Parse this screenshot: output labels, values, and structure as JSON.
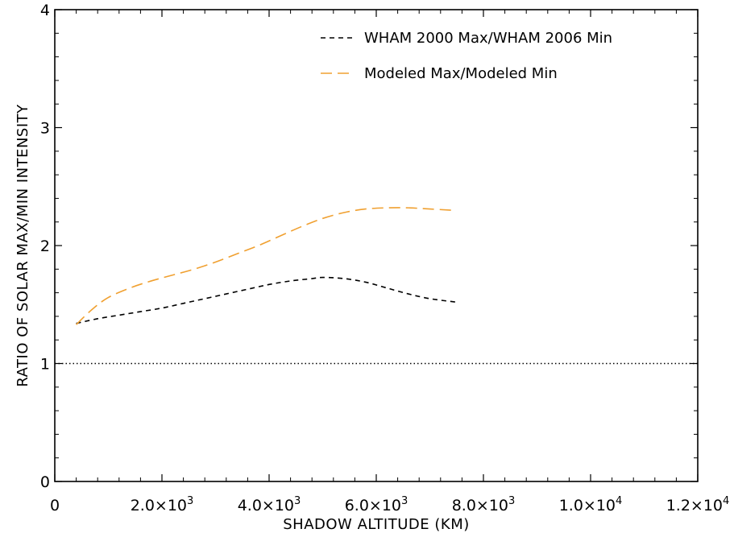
{
  "chart_data": {
    "type": "line",
    "title": "",
    "xlabel": "SHADOW ALTITUDE (KM)",
    "ylabel": "RATIO OF SOLAR MAX/MIN INTENSITY",
    "xlim": [
      0,
      12000
    ],
    "ylim": [
      0,
      4
    ],
    "x_ticks": [
      {
        "value": 0,
        "label": "0"
      },
      {
        "value": 2000,
        "label": "2.0×10",
        "exp": "3"
      },
      {
        "value": 4000,
        "label": "4.0×10",
        "exp": "3"
      },
      {
        "value": 6000,
        "label": "6.0×10",
        "exp": "3"
      },
      {
        "value": 8000,
        "label": "8.0×10",
        "exp": "3"
      },
      {
        "value": 10000,
        "label": "1.0×10",
        "exp": "4"
      },
      {
        "value": 12000,
        "label": "1.2×10",
        "exp": "4"
      }
    ],
    "y_ticks": [
      {
        "value": 0,
        "label": "0"
      },
      {
        "value": 1,
        "label": "1"
      },
      {
        "value": 2,
        "label": "2"
      },
      {
        "value": 3,
        "label": "3"
      },
      {
        "value": 4,
        "label": "4"
      }
    ],
    "grid": false,
    "legend_position": "top-right",
    "reference_line": {
      "y": 1,
      "style": "dotted",
      "color": "#000000"
    },
    "series": [
      {
        "name": "WHAM 2000 Max/WHAM 2006 Min",
        "color": "#000000",
        "style": "short-dash",
        "x": [
          400,
          800,
          1200,
          1600,
          2000,
          2400,
          2800,
          3200,
          3600,
          4000,
          4400,
          4800,
          5000,
          5400,
          5800,
          6200,
          6600,
          7000,
          7500
        ],
        "y": [
          1.34,
          1.38,
          1.41,
          1.44,
          1.47,
          1.51,
          1.55,
          1.59,
          1.63,
          1.67,
          1.7,
          1.72,
          1.73,
          1.72,
          1.69,
          1.64,
          1.59,
          1.55,
          1.52
        ]
      },
      {
        "name": "Modeled Max/Modeled Min",
        "color": "#f0a030",
        "style": "long-dash",
        "x": [
          400,
          700,
          1000,
          1400,
          1800,
          2200,
          2600,
          3000,
          3400,
          3800,
          4200,
          4600,
          5000,
          5400,
          5800,
          6200,
          6600,
          7000,
          7400
        ],
        "y": [
          1.33,
          1.46,
          1.56,
          1.64,
          1.7,
          1.75,
          1.8,
          1.86,
          1.93,
          2.0,
          2.08,
          2.16,
          2.23,
          2.28,
          2.31,
          2.32,
          2.32,
          2.31,
          2.3
        ]
      }
    ]
  }
}
